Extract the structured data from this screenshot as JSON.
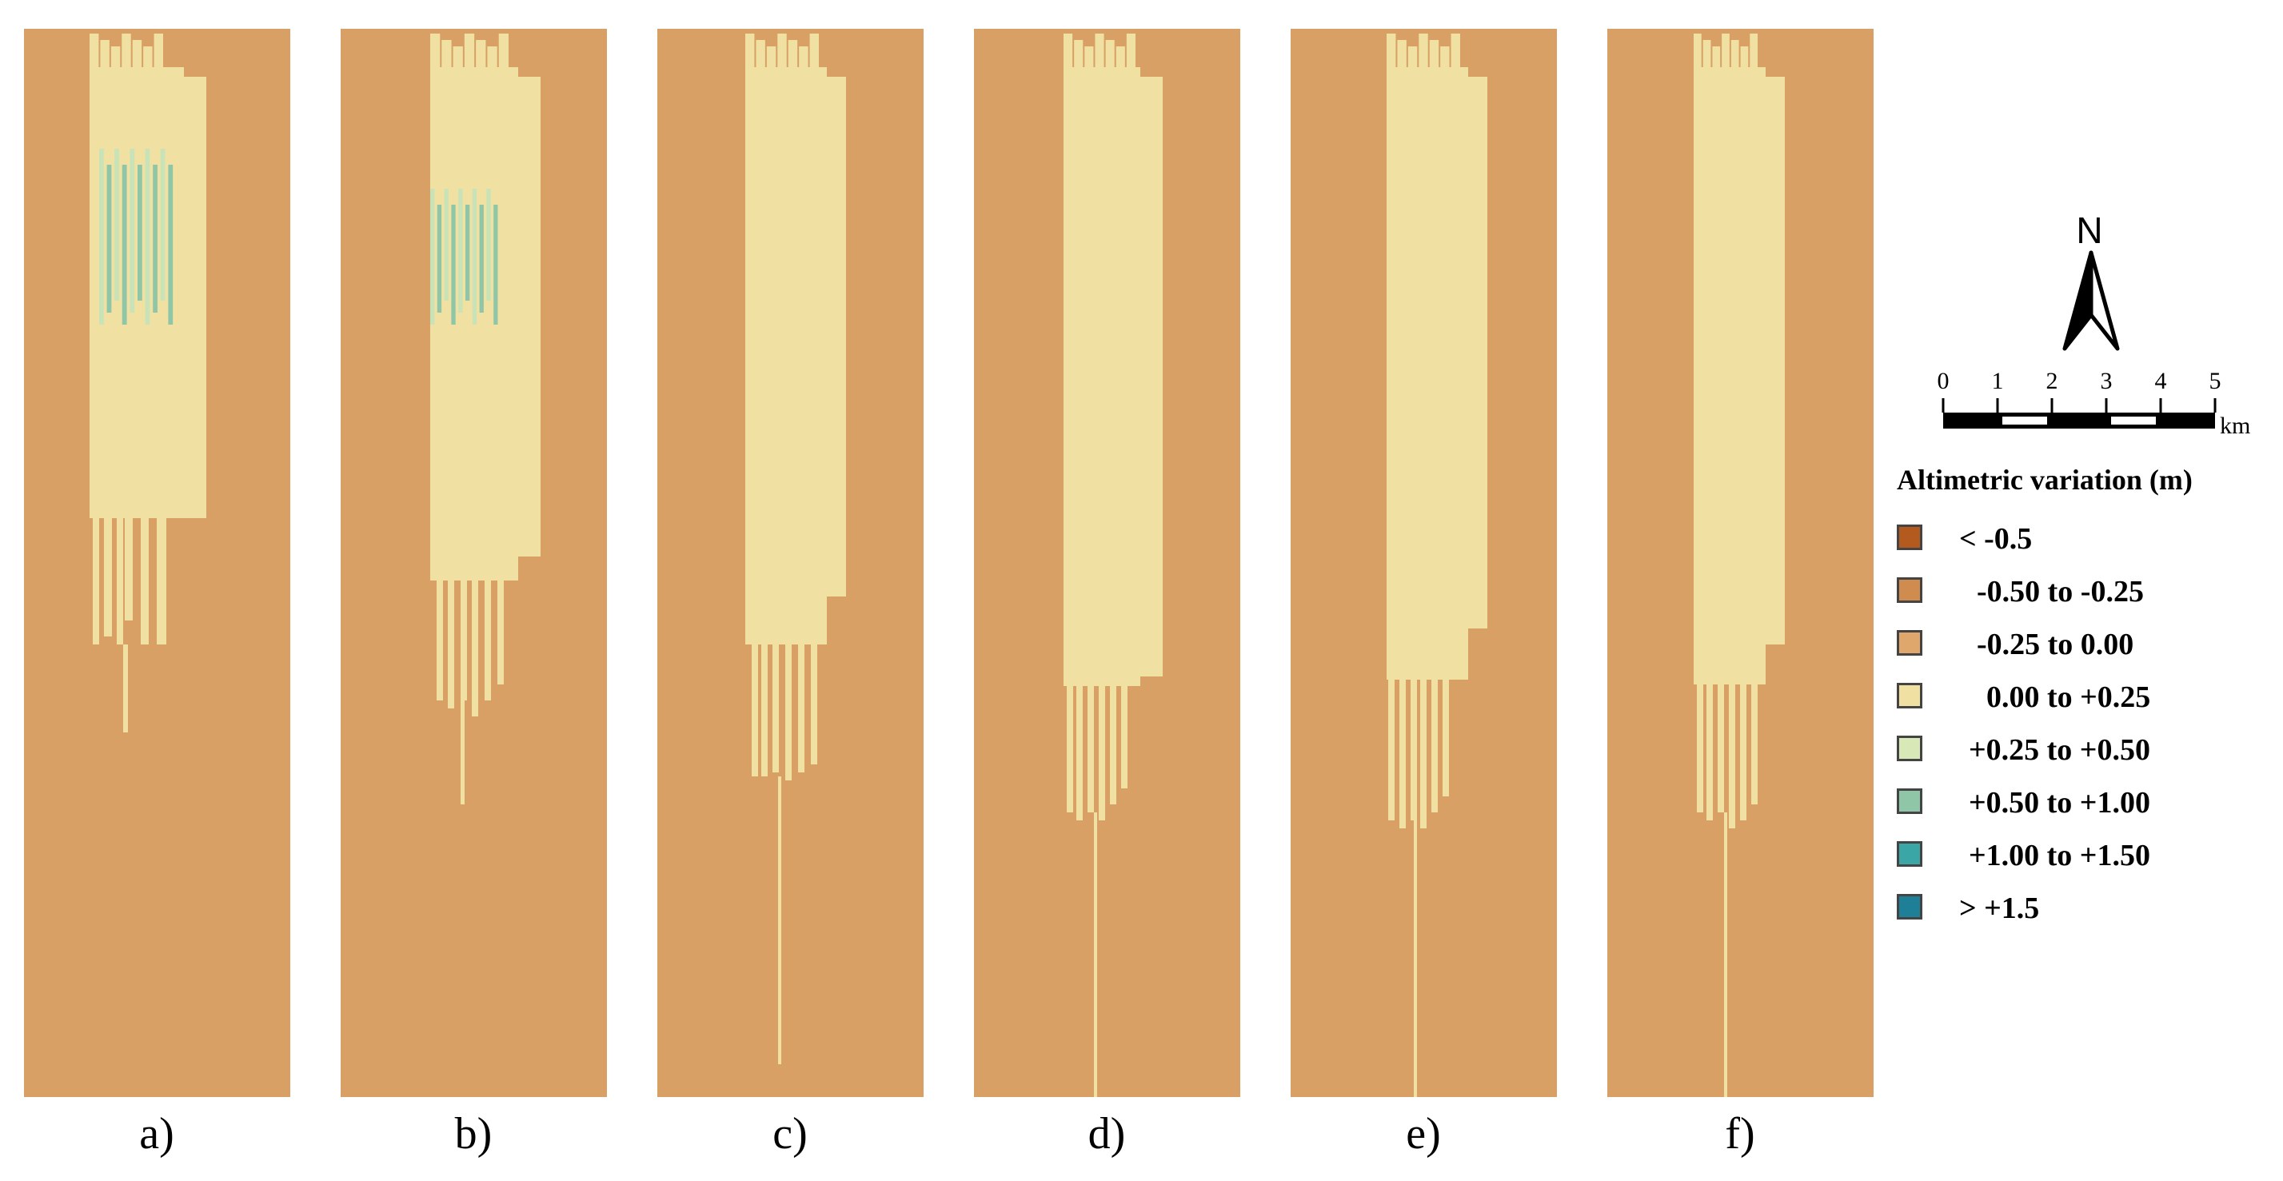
{
  "figure": {
    "panels": [
      {
        "label": "a)"
      },
      {
        "label": "b)"
      },
      {
        "label": "c)"
      },
      {
        "label": "d)"
      },
      {
        "label": "e)"
      },
      {
        "label": "f)"
      }
    ],
    "north_arrow": {
      "letter": "N",
      "icon": "north-arrow-icon"
    },
    "scale_bar": {
      "ticks": [
        "0",
        "1",
        "2",
        "3",
        "4",
        "5"
      ],
      "unit": "km"
    },
    "legend": {
      "title": "Altimetric variation (m)",
      "items": [
        {
          "label": "< -0.5",
          "color": "#b35a1f"
        },
        {
          "label": "-0.50 to -0.25",
          "color": "#cf8c4e"
        },
        {
          "label": "-0.25 to 0.00",
          "color": "#dfa76b"
        },
        {
          "label": "0.00 to +0.25",
          "color": "#f0e0a2"
        },
        {
          "label": "+0.25 to +0.50",
          "color": "#d9e8b7"
        },
        {
          "label": "+0.50 to +1.00",
          "color": "#8fc6a8"
        },
        {
          "label": "+1.00 to +1.50",
          "color": "#3aa6a6"
        },
        {
          "label": "> +1.5",
          "color": "#1f7f96"
        }
      ]
    },
    "colors": {
      "background_class": "#d8a065",
      "plume_class": "#f0e0a2",
      "green_class": "#c8e3b8",
      "teal_class": "#8fc6a8"
    }
  }
}
